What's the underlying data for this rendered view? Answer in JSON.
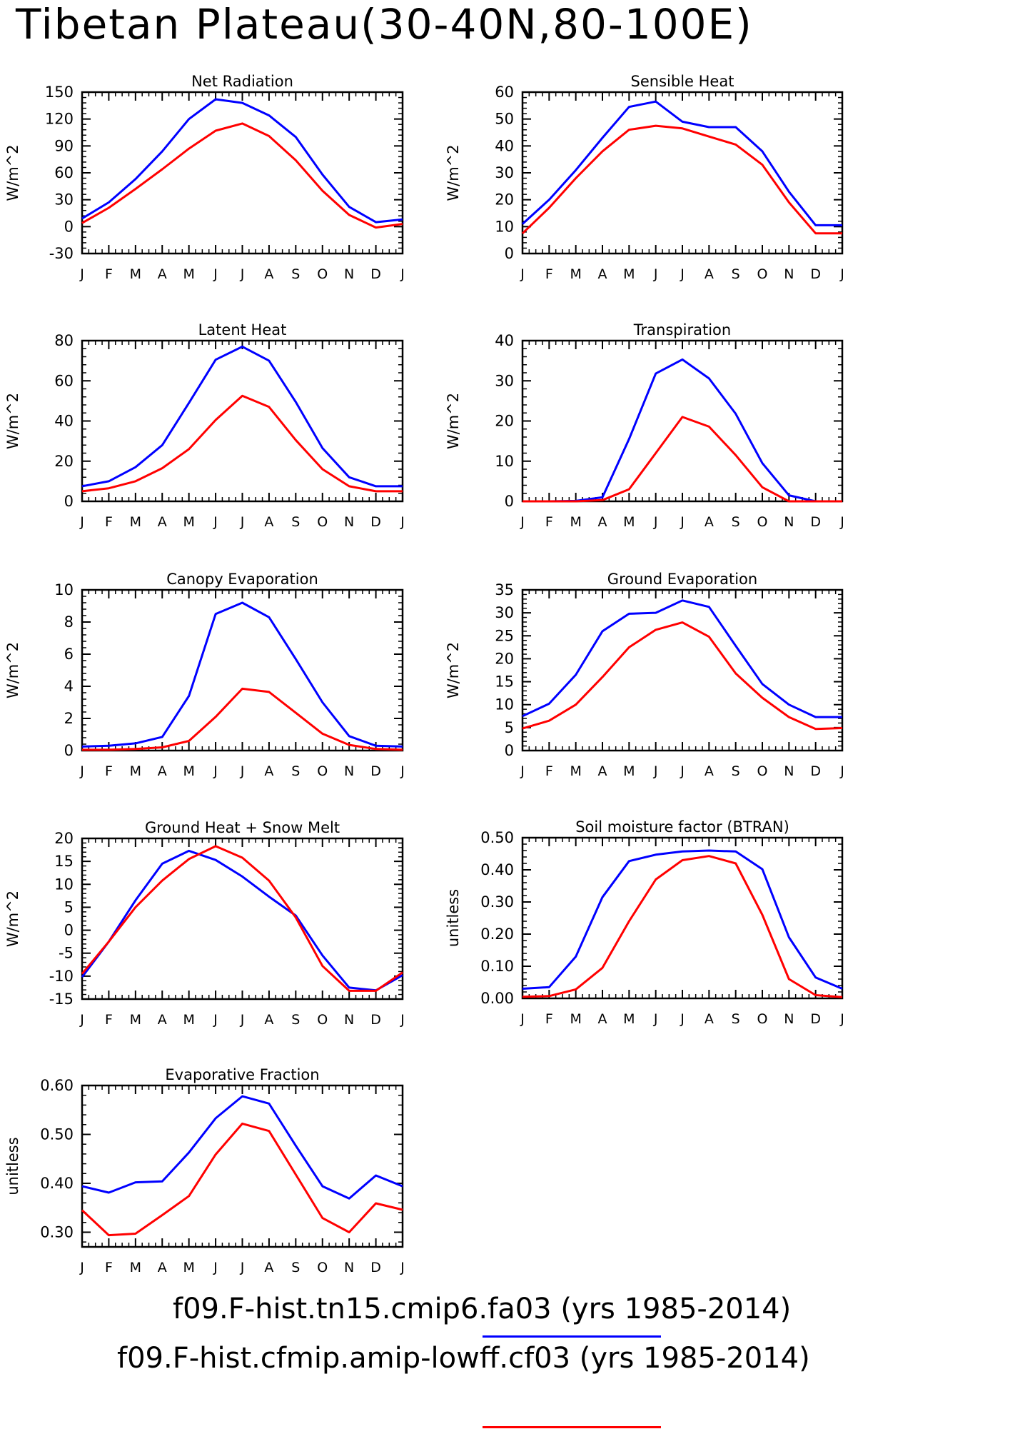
{
  "page_title": "Tibetan Plateau(30-40N,80-100E)",
  "legend": {
    "entries": [
      {
        "label": "f09.F-hist.tn15.cmip6.fa03 (yrs 1985-2014)",
        "color": "#0000ff"
      },
      {
        "label": "f09.F-hist.cfmip.amip-lowff.cf03 (yrs 1985-2014)",
        "color": "#ff0000"
      }
    ]
  },
  "chart_data": [
    {
      "type": "line",
      "title": "Net Radiation",
      "xlabel": "",
      "ylabel": "W/m^2",
      "categories": [
        "J",
        "F",
        "M",
        "A",
        "M",
        "J",
        "J",
        "A",
        "S",
        "O",
        "N",
        "D",
        "J"
      ],
      "ylim": [
        -30,
        150
      ],
      "yticks": [
        -30,
        0,
        30,
        60,
        90,
        120,
        150
      ],
      "ytick_labels": [
        "-30",
        "0",
        "30",
        "60",
        "90",
        "120",
        "150"
      ],
      "series": [
        {
          "color": "#0000ff",
          "values": [
            9,
            27,
            53,
            84,
            120,
            142,
            138,
            124,
            100,
            58,
            22,
            5,
            8
          ]
        },
        {
          "color": "#ff0000",
          "values": [
            4,
            21,
            42,
            64,
            87,
            107,
            115,
            101,
            74,
            40,
            13,
            -1,
            3
          ]
        }
      ]
    },
    {
      "type": "line",
      "title": "Sensible Heat",
      "xlabel": "",
      "ylabel": "W/m^2",
      "categories": [
        "J",
        "F",
        "M",
        "A",
        "M",
        "J",
        "J",
        "A",
        "S",
        "O",
        "N",
        "D",
        "J"
      ],
      "ylim": [
        0,
        60
      ],
      "yticks": [
        0,
        10,
        20,
        30,
        40,
        50,
        60
      ],
      "ytick_labels": [
        "0",
        "10",
        "20",
        "30",
        "40",
        "50",
        "60"
      ],
      "series": [
        {
          "color": "#0000ff",
          "values": [
            11,
            20,
            31,
            43,
            54.5,
            56.5,
            49,
            47,
            47,
            38,
            23,
            10.5,
            10.5
          ]
        },
        {
          "color": "#ff0000",
          "values": [
            7.5,
            17,
            28,
            38,
            46,
            47.5,
            46.5,
            43.5,
            40.5,
            33,
            19,
            7.5,
            7.5
          ]
        }
      ]
    },
    {
      "type": "line",
      "title": "Latent Heat",
      "xlabel": "",
      "ylabel": "W/m^2",
      "categories": [
        "J",
        "F",
        "M",
        "A",
        "M",
        "J",
        "J",
        "A",
        "S",
        "O",
        "N",
        "D",
        "J"
      ],
      "ylim": [
        0,
        80
      ],
      "yticks": [
        0,
        20,
        40,
        60,
        80
      ],
      "ytick_labels": [
        "0",
        "20",
        "40",
        "60",
        "80"
      ],
      "series": [
        {
          "color": "#0000ff",
          "values": [
            7.5,
            10,
            17,
            28,
            49,
            70.5,
            77,
            70,
            49.5,
            26.5,
            12,
            7.5,
            7.5
          ]
        },
        {
          "color": "#ff0000",
          "values": [
            5,
            6.5,
            10,
            16.5,
            26,
            40.5,
            52.5,
            47,
            30.5,
            16,
            7.5,
            5,
            5
          ]
        }
      ]
    },
    {
      "type": "line",
      "title": "Transpiration",
      "xlabel": "",
      "ylabel": "W/m^2",
      "categories": [
        "J",
        "F",
        "M",
        "A",
        "M",
        "J",
        "J",
        "A",
        "S",
        "O",
        "N",
        "D",
        "J"
      ],
      "ylim": [
        0,
        40
      ],
      "yticks": [
        0,
        10,
        20,
        30,
        40
      ],
      "ytick_labels": [
        "0",
        "10",
        "20",
        "30",
        "40"
      ],
      "series": [
        {
          "color": "#0000ff",
          "values": [
            0,
            0,
            0.1,
            1,
            15.5,
            31.8,
            35.3,
            30.6,
            21.8,
            9.5,
            1.5,
            0,
            0
          ]
        },
        {
          "color": "#ff0000",
          "values": [
            0,
            0,
            0,
            0.3,
            3,
            12,
            21,
            18.6,
            11.5,
            3.5,
            0,
            0,
            0
          ]
        }
      ]
    },
    {
      "type": "line",
      "title": "Canopy Evaporation",
      "xlabel": "",
      "ylabel": "W/m^2",
      "categories": [
        "J",
        "F",
        "M",
        "A",
        "M",
        "J",
        "J",
        "A",
        "S",
        "O",
        "N",
        "D",
        "J"
      ],
      "ylim": [
        0,
        10
      ],
      "yticks": [
        0,
        2,
        4,
        6,
        8,
        10
      ],
      "ytick_labels": [
        "0",
        "2",
        "4",
        "6",
        "8",
        "10"
      ],
      "series": [
        {
          "color": "#0000ff",
          "values": [
            0.25,
            0.3,
            0.45,
            0.85,
            3.4,
            8.5,
            9.2,
            8.3,
            5.7,
            3.0,
            0.9,
            0.3,
            0.25
          ]
        },
        {
          "color": "#ff0000",
          "values": [
            0.05,
            0.05,
            0.1,
            0.2,
            0.6,
            2.1,
            3.85,
            3.65,
            2.35,
            1.05,
            0.35,
            0.1,
            0.05
          ]
        }
      ]
    },
    {
      "type": "line",
      "title": "Ground Evaporation",
      "xlabel": "",
      "ylabel": "W/m^2",
      "categories": [
        "J",
        "F",
        "M",
        "A",
        "M",
        "J",
        "J",
        "A",
        "S",
        "O",
        "N",
        "D",
        "J"
      ],
      "ylim": [
        0,
        35
      ],
      "yticks": [
        0,
        5,
        10,
        15,
        20,
        25,
        30,
        35
      ],
      "ytick_labels": [
        "0",
        "5",
        "10",
        "15",
        "20",
        "25",
        "30",
        "35"
      ],
      "series": [
        {
          "color": "#0000ff",
          "values": [
            7.5,
            10.2,
            16.5,
            26,
            29.8,
            30,
            32.7,
            31.3,
            22.8,
            14.5,
            10,
            7.3,
            7.3
          ]
        },
        {
          "color": "#ff0000",
          "values": [
            4.8,
            6.5,
            10,
            16,
            22.5,
            26.3,
            27.9,
            24.8,
            16.8,
            11.5,
            7.3,
            4.7,
            4.9
          ]
        }
      ]
    },
    {
      "type": "line",
      "title": "Ground Heat + Snow Melt",
      "xlabel": "",
      "ylabel": "W/m^2",
      "categories": [
        "J",
        "F",
        "M",
        "A",
        "M",
        "J",
        "J",
        "A",
        "S",
        "O",
        "N",
        "D",
        "J"
      ],
      "ylim": [
        -15,
        20
      ],
      "yticks": [
        -15,
        -10,
        -5,
        0,
        5,
        10,
        15,
        20
      ],
      "ytick_labels": [
        "-15",
        "-10",
        "-5",
        "0",
        "5",
        "10",
        "15",
        "20"
      ],
      "series": [
        {
          "color": "#0000ff",
          "values": [
            -10.2,
            -2.5,
            6.5,
            14.5,
            17.3,
            15.3,
            11.7,
            7.3,
            3.2,
            -5.5,
            -12.5,
            -13.1,
            -9.8
          ]
        },
        {
          "color": "#ff0000",
          "values": [
            -9.5,
            -2.5,
            5,
            10.8,
            15.5,
            18.3,
            15.8,
            10.8,
            2.8,
            -7.8,
            -13.2,
            -13.2,
            -9.2
          ]
        }
      ]
    },
    {
      "type": "line",
      "title": "Soil moisture factor (BTRAN)",
      "xlabel": "",
      "ylabel": "unitless",
      "categories": [
        "J",
        "F",
        "M",
        "A",
        "M",
        "J",
        "J",
        "A",
        "S",
        "O",
        "N",
        "D",
        "J"
      ],
      "ylim": [
        0,
        0.5
      ],
      "yticks": [
        0,
        0.1,
        0.2,
        0.3,
        0.4,
        0.5
      ],
      "ytick_labels": [
        "0.00",
        "0.10",
        "0.20",
        "0.30",
        "0.40",
        "0.50"
      ],
      "series": [
        {
          "color": "#0000ff",
          "values": [
            0.03,
            0.035,
            0.13,
            0.315,
            0.427,
            0.447,
            0.457,
            0.46,
            0.457,
            0.402,
            0.19,
            0.065,
            0.03
          ]
        },
        {
          "color": "#ff0000",
          "values": [
            0.005,
            0.007,
            0.028,
            0.095,
            0.24,
            0.37,
            0.43,
            0.443,
            0.42,
            0.26,
            0.06,
            0.01,
            0.004
          ]
        }
      ]
    },
    {
      "type": "line",
      "title": "Evaporative Fraction",
      "xlabel": "",
      "ylabel": "unitless",
      "categories": [
        "J",
        "F",
        "M",
        "A",
        "M",
        "J",
        "J",
        "A",
        "S",
        "O",
        "N",
        "D",
        "J"
      ],
      "ylim": [
        0.27,
        0.6
      ],
      "yticks": [
        0.3,
        0.4,
        0.5,
        0.6
      ],
      "ytick_labels": [
        "0.30",
        "0.40",
        "0.50",
        "0.60"
      ],
      "series": [
        {
          "color": "#0000ff",
          "values": [
            0.394,
            0.381,
            0.402,
            0.404,
            0.463,
            0.533,
            0.578,
            0.563,
            0.477,
            0.394,
            0.369,
            0.416,
            0.394
          ]
        },
        {
          "color": "#ff0000",
          "values": [
            0.345,
            0.294,
            0.297,
            0.335,
            0.374,
            0.459,
            0.522,
            0.507,
            0.418,
            0.329,
            0.3,
            0.359,
            0.346
          ]
        }
      ]
    }
  ]
}
